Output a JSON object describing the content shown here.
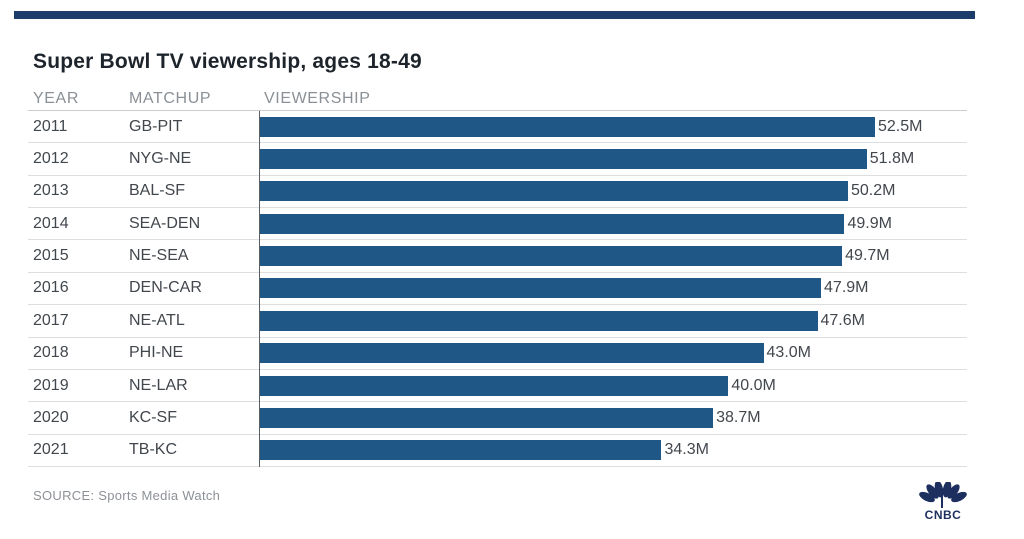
{
  "page": {
    "title": "Super Bowl TV viewership, ages 18-49",
    "source_note": "SOURCE: Sports Media Watch",
    "brand": "CNBC"
  },
  "table": {
    "headers": {
      "year": "YEAR",
      "matchup": "MATCHUP",
      "viewership": "VIEWERSHIP"
    }
  },
  "chart_data": {
    "type": "bar",
    "orientation": "horizontal",
    "title": "Super Bowl TV viewership, ages 18-49",
    "categories": [
      "2011",
      "2012",
      "2013",
      "2014",
      "2015",
      "2016",
      "2017",
      "2018",
      "2019",
      "2020",
      "2021"
    ],
    "matchups": [
      "GB-PIT",
      "NYG-NE",
      "BAL-SF",
      "SEA-DEN",
      "NE-SEA",
      "DEN-CAR",
      "NE-ATL",
      "PHI-NE",
      "NE-LAR",
      "KC-SF",
      "TB-KC"
    ],
    "values": [
      52.5,
      51.8,
      50.2,
      49.9,
      49.7,
      47.9,
      47.6,
      43.0,
      40.0,
      38.7,
      34.3
    ],
    "value_labels": [
      "52.5M",
      "51.8M",
      "50.2M",
      "49.9M",
      "49.7M",
      "47.9M",
      "47.6M",
      "43.0M",
      "40.0M",
      "38.7M",
      "34.3M"
    ],
    "xlabel": "VIEWERSHIP",
    "ylabel": "YEAR",
    "xlim": [
      0,
      55
    ],
    "grid": false,
    "legend": false,
    "unit": "millions of viewers"
  },
  "colors": {
    "accent_bar": "#1c3d6b",
    "bar_fill": "#1f5787",
    "title_text": "#1e242b",
    "header_text": "#8a9096",
    "row_text": "#42474d",
    "separator": "#dcdee0",
    "axis_line": "#595e63",
    "source_text": "#8d9196",
    "logo_navy": "#1c2f5e"
  }
}
